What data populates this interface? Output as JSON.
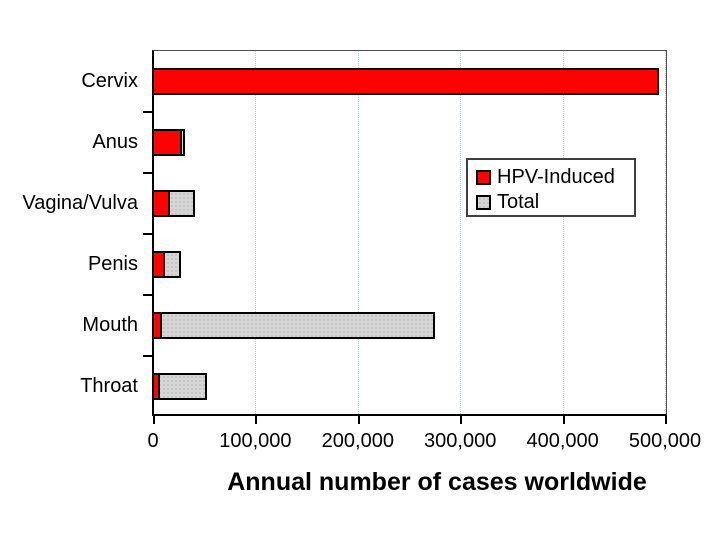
{
  "figure": {
    "title": "Annual number of cases worldwide",
    "background": "#ffffff"
  },
  "chart_data": {
    "type": "bar",
    "orientation": "horizontal",
    "title": "",
    "xlabel": "Annual number of cases worldwide",
    "ylabel": "",
    "categories": [
      "Cervix",
      "Anus",
      "Vagina/Vulva",
      "Penis",
      "Mouth",
      "Throat"
    ],
    "series": [
      {
        "name": "HPV-Induced",
        "color": "#fb0300",
        "values": [
          492800,
          27300,
          16000,
          10500,
          8200,
          6200
        ]
      },
      {
        "name": "Total",
        "color": "#d6d6d6",
        "values": [
          492800,
          30400,
          40000,
          26300,
          274300,
          52100
        ]
      }
    ],
    "xlim": [
      0,
      500000
    ],
    "xticks": [
      0,
      100000,
      200000,
      300000,
      400000,
      500000
    ],
    "xtick_labels": [
      "0",
      "100,000",
      "200,000",
      "300,000",
      "400,000",
      "500,000"
    ],
    "grid": "vertical-dotted",
    "grid_color": "#b9d6d6",
    "legend": {
      "position": "inside-right",
      "entries": [
        "HPV-Induced",
        "Total"
      ]
    }
  }
}
